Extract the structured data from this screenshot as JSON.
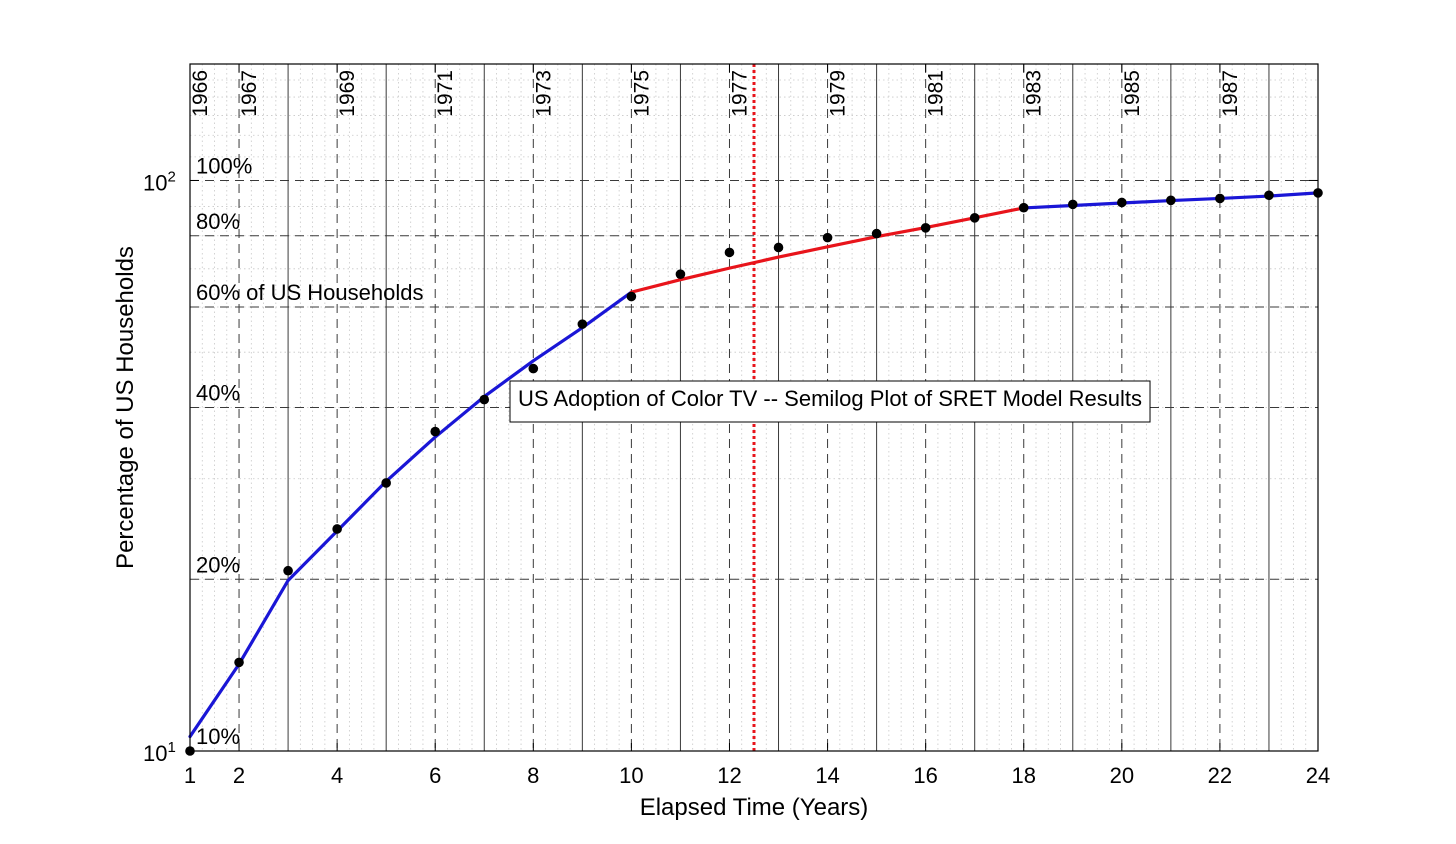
{
  "chart_data": {
    "type": "line",
    "title": "US Adoption of Color TV -- Semilog Plot of SRET Model Results",
    "xlabel": "Elapsed Time (Years)",
    "ylabel": "Percentage of US Households",
    "xlim": [
      1,
      24
    ],
    "ylim": [
      10,
      160
    ],
    "yscale": "log",
    "grid": true,
    "x_ticks": [
      {
        "value": 1,
        "label": "1"
      },
      {
        "value": 2,
        "label": "2"
      },
      {
        "value": 4,
        "label": "4"
      },
      {
        "value": 6,
        "label": "6"
      },
      {
        "value": 8,
        "label": "8"
      },
      {
        "value": 10,
        "label": "10"
      },
      {
        "value": 12,
        "label": "12"
      },
      {
        "value": 14,
        "label": "14"
      },
      {
        "value": 16,
        "label": "16"
      },
      {
        "value": 18,
        "label": "18"
      },
      {
        "value": 20,
        "label": "20"
      },
      {
        "value": 22,
        "label": "22"
      },
      {
        "value": 24,
        "label": "24"
      }
    ],
    "y_ticks": [
      {
        "value": 10,
        "base": "10",
        "exp": "1"
      },
      {
        "value": 100,
        "base": "10",
        "exp": "2"
      }
    ],
    "year_annotations": [
      {
        "x": 1,
        "label": "1966"
      },
      {
        "x": 2,
        "label": "1967"
      },
      {
        "x": 4,
        "label": "1969"
      },
      {
        "x": 6,
        "label": "1971"
      },
      {
        "x": 8,
        "label": "1973"
      },
      {
        "x": 10,
        "label": "1975"
      },
      {
        "x": 12,
        "label": "1977"
      },
      {
        "x": 14,
        "label": "1979"
      },
      {
        "x": 16,
        "label": "1981"
      },
      {
        "x": 18,
        "label": "1983"
      },
      {
        "x": 20,
        "label": "1985"
      },
      {
        "x": 22,
        "label": "1987"
      }
    ],
    "percent_annotations": [
      {
        "y": 100,
        "label": "100%"
      },
      {
        "y": 80,
        "label": "80%"
      },
      {
        "y": 60,
        "label": "60% of US Households"
      },
      {
        "y": 40,
        "label": "40%"
      },
      {
        "y": 20,
        "label": "20%"
      },
      {
        "y": 10,
        "label": "10%"
      }
    ],
    "vertical_marker": {
      "x": 12.5,
      "color": "#e8141b"
    },
    "observed": {
      "color": "#000000",
      "x": [
        1,
        2,
        3,
        4,
        5,
        6,
        7,
        8,
        9,
        10,
        11,
        12,
        13,
        14,
        15,
        16,
        17,
        18,
        19,
        20,
        21,
        22,
        23,
        24
      ],
      "y": [
        10.0,
        14.3,
        20.7,
        24.5,
        29.5,
        36.3,
        41.3,
        46.8,
        56.0,
        62.6,
        68.5,
        74.8,
        76.3,
        79.4,
        80.7,
        82.6,
        86.0,
        89.6,
        90.8,
        91.5,
        92.3,
        93.0,
        94.2,
        95.1
      ]
    },
    "series": [
      {
        "color": "#1a16d6",
        "x": [
          1,
          2,
          3,
          4,
          5,
          6,
          7,
          8,
          9,
          10
        ],
        "y": [
          10.6,
          14.2,
          19.9,
          24.3,
          29.7,
          35.5,
          41.8,
          48.3,
          55.2,
          63.7
        ]
      },
      {
        "color": "#e8141b",
        "x": [
          10,
          11,
          12,
          13,
          14,
          15,
          16,
          17,
          18
        ],
        "y": [
          63.7,
          67.0,
          70.2,
          73.4,
          76.5,
          79.7,
          82.7,
          86.0,
          89.5
        ]
      },
      {
        "color": "#1a16d6",
        "x": [
          18,
          19,
          20,
          21,
          22,
          23,
          24
        ],
        "y": [
          89.5,
          90.4,
          91.3,
          92.2,
          93.0,
          93.9,
          95.1
        ]
      }
    ]
  }
}
